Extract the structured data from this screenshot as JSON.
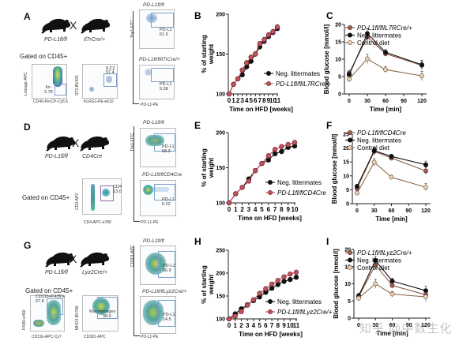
{
  "panels": {
    "A": {
      "letter": "A",
      "mouse_left": "PD-L1fl/fl",
      "mouse_right": "Il7rCre/+",
      "cross": "X",
      "gated": "Gated on CD45+",
      "flow1": {
        "xaxis": "CD45-PerCP-Cy5.5",
        "yaxis": "Lineage-APC",
        "gate_name": "lin-",
        "gate_value": "2.78"
      },
      "flow2": {
        "xaxis": "KLRG1-PE-e610",
        "yaxis": "ST2-BV421",
        "gate_name": "ILC2",
        "gate_value": "57.4"
      },
      "flow3": {
        "title": "PD-L1fl/fl",
        "gate_name": "PD-L1",
        "gate_value": "61.5"
      },
      "flow4": {
        "title": "PD-L1fl/flIl7rCre/+",
        "gate_name": "PD-L1",
        "gate_value": "5.38"
      },
      "flow_shared": {
        "xaxis": "PD-L1-PE",
        "yaxis": "Thy1-FITC"
      }
    },
    "D": {
      "letter": "D",
      "mouse_left": "PD-L1fl/fl",
      "mouse_right": "CD4Cre",
      "cross": "X",
      "gated": "Gated on CD45+",
      "flow1": {
        "xaxis": "CD4-APC-e780",
        "yaxis": "CD3-APC",
        "gate_name": "CD4",
        "gate_value": "13.0"
      },
      "flow3": {
        "title": "PD-L1fl/fl",
        "gate_name": "PD-L1",
        "gate_value": "58.3"
      },
      "flow4": {
        "title": "PD-L1fl/flCD4Cre",
        "gate_name": "PD-L1",
        "gate_value": "6.22"
      },
      "flow_shared": {
        "xaxis": "PD-L1-PE",
        "yaxis": "Thy1-FITC"
      }
    },
    "G": {
      "letter": "G",
      "mouse_left": "PD-L1fl/fl",
      "mouse_right": "Lyz2Cre/+",
      "cross": "X",
      "gated": "Gated on CD45+",
      "flow1": {
        "xaxis": "CD11b-APC-Cy7",
        "yaxis": "F4/80-e450",
        "gate_name": "CD11b+F4/80+",
        "gate_value": "57.8"
      },
      "flow2": {
        "xaxis": "CD301-APC",
        "yaxis": "MHCII-BV786",
        "gate_name": "Macrophages",
        "gate_value": "98.0"
      },
      "flow3": {
        "title": "PD-L1fl/fl",
        "gate_name": "PD-L1",
        "gate_value": "56.9"
      },
      "flow4": {
        "title": "PD-L1fl/flLyz2Cre/+",
        "gate_name": "PD-L1",
        "gate_value": "14.5"
      },
      "flow_shared": {
        "xaxis": "PD-L1-PE",
        "yaxis": "CD301-APC"
      }
    }
  },
  "watermark": "知乎 @中数生化",
  "colors": {
    "black": "#111111",
    "red": "#b8434f",
    "tan": "#c8a27a",
    "brown": "#8a5a44"
  },
  "chart_data": [
    {
      "id": "B",
      "letter": "B",
      "type": "line",
      "title": "",
      "xlabel": "Time on HFD [weeks]",
      "ylabel": "% of starting weight",
      "x": [
        0,
        1,
        2,
        3,
        4,
        5,
        6,
        7,
        8,
        9,
        10,
        11
      ],
      "xticks": [
        "0",
        "1",
        "2",
        "3",
        "4",
        "5",
        "6",
        "7",
        "8",
        "9",
        "10",
        "11"
      ],
      "ylim": [
        100,
        200
      ],
      "yticks": [
        100,
        150,
        200
      ],
      "legend": "right",
      "series": [
        {
          "name": "Neg. littermates",
          "color": "#111111",
          "marker": "filled",
          "values": [
            100,
            112,
            119,
            124,
            134,
            141,
            150,
            159,
            166,
            172,
            177,
            182
          ]
        },
        {
          "name": "PD-L1fl/flIL7RCre/+",
          "color": "#b8434f",
          "marker": "open",
          "values": [
            100,
            112,
            119,
            130,
            139,
            146,
            150,
            163,
            168,
            174,
            178,
            184
          ]
        }
      ]
    },
    {
      "id": "C",
      "letter": "C",
      "type": "line",
      "xlabel": "Time [min]",
      "ylabel": "Blood glucose [mmol/l]",
      "x": [
        0,
        30,
        60,
        120
      ],
      "xticks": [
        "0",
        "30",
        "60",
        "90",
        "120"
      ],
      "xlim": [
        0,
        120
      ],
      "ylim": [
        0,
        20
      ],
      "yticks": [
        0,
        5,
        10,
        15,
        20
      ],
      "legend": "top-right",
      "series": [
        {
          "name": "PD-L1fl/flIL7RCre/+",
          "color": "#8a5a44",
          "marker": "open-dark",
          "values": [
            6.0,
            16.4,
            11.6,
            8.2
          ]
        },
        {
          "name": "Neg. littermates",
          "color": "#111111",
          "marker": "filled",
          "values": [
            5.5,
            17.4,
            12.0,
            8.4
          ]
        },
        {
          "name": "Control diet",
          "color": "#c8a27a",
          "marker": "open",
          "values": [
            4.3,
            10.1,
            7.0,
            5.2
          ]
        }
      ]
    },
    {
      "id": "E",
      "letter": "E",
      "type": "line",
      "xlabel": "Time on HFD [weeks]",
      "ylabel": "% of starting weight",
      "x": [
        0,
        1,
        2,
        3,
        4,
        5,
        6,
        7,
        8,
        9,
        10
      ],
      "xticks": [
        "0",
        "1",
        "2",
        "3",
        "4",
        "5",
        "6",
        "7",
        "8",
        "9",
        "10"
      ],
      "ylim": [
        100,
        200
      ],
      "yticks": [
        100,
        150,
        200
      ],
      "legend": "right",
      "series": [
        {
          "name": "Neg. littermates",
          "color": "#111111",
          "marker": "filled",
          "values": [
            100,
            113,
            122,
            134,
            146,
            156,
            161,
            170,
            173,
            179,
            181
          ]
        },
        {
          "name": "PD-L1fl/flCD4Cre",
          "color": "#b8434f",
          "marker": "open",
          "values": [
            100,
            113,
            122,
            131,
            146,
            156,
            167,
            176,
            180,
            183,
            186
          ]
        }
      ]
    },
    {
      "id": "F",
      "letter": "F",
      "type": "line",
      "xlabel": "Time [min]",
      "ylabel": "Blood glucose [mmol/l]",
      "x": [
        0,
        30,
        60,
        120
      ],
      "xticks": [
        "0",
        "30",
        "60",
        "90",
        "120"
      ],
      "xlim": [
        0,
        120
      ],
      "ylim": [
        0,
        25
      ],
      "yticks": [
        0,
        5,
        10,
        15,
        20,
        25
      ],
      "legend": "top-right",
      "series": [
        {
          "name": "PD-L1fl/flCD4Cre",
          "color": "#8a5a44",
          "marker": "open-dark",
          "values": [
            5.5,
            18.8,
            16.4,
            11.8
          ]
        },
        {
          "name": "Neg. littermates",
          "color": "#111111",
          "marker": "filled",
          "values": [
            6.2,
            19.1,
            17.0,
            14.0
          ]
        },
        {
          "name": "Control diet",
          "color": "#c8a27a",
          "marker": "open",
          "values": [
            3.8,
            14.9,
            9.5,
            5.9
          ]
        }
      ]
    },
    {
      "id": "H",
      "letter": "H",
      "type": "line",
      "xlabel": "Time on HFD [weeks]",
      "ylabel": "% of starting weight",
      "x": [
        0,
        1,
        2,
        3,
        4,
        5,
        6,
        7,
        8,
        9,
        10,
        11
      ],
      "xticks": [
        "0",
        "1",
        "2",
        "3",
        "4",
        "5",
        "6",
        "7",
        "8",
        "9",
        "10",
        "11"
      ],
      "ylim": [
        100,
        250
      ],
      "yticks": [
        100,
        150,
        200,
        250
      ],
      "legend": "right",
      "series": [
        {
          "name": "Neg. littermates",
          "color": "#111111",
          "marker": "filled",
          "values": [
            100,
            111,
            122,
            131,
            140,
            148,
            158,
            167,
            175,
            182,
            186,
            191
          ]
        },
        {
          "name": "PD-L1fl/flLyz2Cre/+",
          "color": "#b8434f",
          "marker": "open",
          "values": [
            100,
            106,
            116,
            130,
            142,
            156,
            166,
            176,
            184,
            192,
            198,
            202
          ]
        }
      ]
    },
    {
      "id": "I",
      "letter": "I",
      "type": "line",
      "xlabel": "Time [min]",
      "ylabel": "Blood glucose [mmol/l]",
      "x": [
        0,
        30,
        60,
        120
      ],
      "xticks": [
        "0",
        "30",
        "60",
        "90",
        "120"
      ],
      "xlim": [
        0,
        120
      ],
      "ylim": [
        0,
        20
      ],
      "yticks": [
        0,
        5,
        10,
        15,
        20
      ],
      "legend": "top-right",
      "series": [
        {
          "name": "PD-L1fl/flLyz2Cre/+",
          "color": "#8a5a44",
          "marker": "open-dark",
          "values": [
            6.2,
            15.5,
            9.5,
            6.8
          ]
        },
        {
          "name": "Neg. littermates",
          "color": "#111111",
          "marker": "filled",
          "values": [
            6.5,
            16.8,
            10.8,
            8.0
          ]
        },
        {
          "name": "Control diet",
          "color": "#c8a27a",
          "marker": "open",
          "values": [
            5.8,
            10.0,
            7.0,
            6.2
          ]
        }
      ]
    }
  ]
}
